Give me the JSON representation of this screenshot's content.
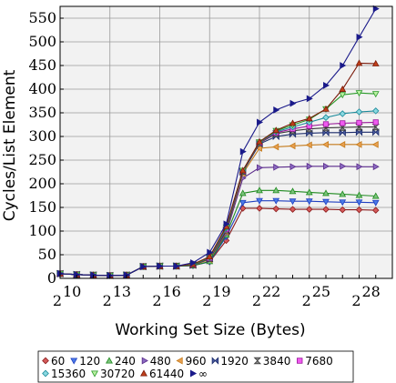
{
  "chart_data": {
    "type": "line",
    "xlabel": "Working Set Size (Bytes)",
    "ylabel": "Cycles/List Element",
    "xscale": "log2",
    "xlim": [
      10,
      30
    ],
    "ylim": [
      0,
      575
    ],
    "grid": true,
    "xticks": [
      {
        "exp": 10,
        "base": "2",
        "power": "10"
      },
      {
        "exp": 13,
        "base": "2",
        "power": "13"
      },
      {
        "exp": 16,
        "base": "2",
        "power": "16"
      },
      {
        "exp": 19,
        "base": "2",
        "power": "19"
      },
      {
        "exp": 22,
        "base": "2",
        "power": "22"
      },
      {
        "exp": 25,
        "base": "2",
        "power": "25"
      },
      {
        "exp": 28,
        "base": "2",
        "power": "28"
      }
    ],
    "yticks": [
      "0",
      "50",
      "100",
      "150",
      "200",
      "250",
      "300",
      "350",
      "400",
      "450",
      "500",
      "550"
    ],
    "legend_position": "bottom",
    "x_exponents": [
      10,
      11,
      12,
      13,
      14,
      15,
      16,
      17,
      18,
      19,
      20,
      21,
      22,
      23,
      24,
      25,
      26,
      27,
      28,
      29
    ],
    "series": [
      {
        "name": "60",
        "marker": "diamond",
        "color": "#8b1a1a",
        "fill": "#d45a5a",
        "values": [
          10,
          8,
          7,
          6,
          7,
          25,
          26,
          26,
          27,
          35,
          80,
          148,
          148,
          147,
          146,
          146,
          146,
          145,
          145,
          144
        ]
      },
      {
        "name": "120",
        "marker": "triangle-down",
        "color": "#2040c0",
        "fill": "#4a7ae8",
        "values": [
          10,
          8,
          7,
          6,
          7,
          25,
          26,
          26,
          27,
          35,
          88,
          160,
          164,
          164,
          163,
          163,
          162,
          161,
          161,
          160
        ]
      },
      {
        "name": "240",
        "marker": "triangle-up",
        "color": "#1f8a1f",
        "fill": "#7cc47c",
        "values": [
          10,
          8,
          7,
          6,
          7,
          25,
          26,
          26,
          27,
          36,
          92,
          180,
          186,
          186,
          184,
          182,
          180,
          178,
          176,
          174
        ]
      },
      {
        "name": "480",
        "marker": "triangle-right",
        "color": "#5a2a8a",
        "fill": "#8a6ac0",
        "values": [
          10,
          8,
          7,
          6,
          7,
          25,
          26,
          26,
          28,
          40,
          95,
          212,
          234,
          235,
          236,
          237,
          237,
          237,
          236,
          236
        ]
      },
      {
        "name": "960",
        "marker": "triangle-left",
        "color": "#c47a1a",
        "fill": "#e8a050",
        "values": [
          10,
          8,
          7,
          6,
          7,
          25,
          26,
          26,
          28,
          40,
          98,
          222,
          275,
          278,
          280,
          282,
          283,
          283,
          283,
          283
        ]
      },
      {
        "name": "1920",
        "marker": "bowtie",
        "color": "#1a2a6a",
        "fill": "#4a5aa0",
        "values": [
          10,
          8,
          7,
          6,
          7,
          25,
          26,
          26,
          28,
          42,
          100,
          225,
          284,
          300,
          305,
          307,
          308,
          308,
          309,
          309
        ]
      },
      {
        "name": "3840",
        "marker": "hourglass",
        "color": "#3a3a3a",
        "fill": "#888888",
        "values": [
          10,
          8,
          7,
          6,
          7,
          25,
          26,
          26,
          29,
          42,
          102,
          226,
          286,
          306,
          312,
          316,
          318,
          319,
          320,
          320
        ]
      },
      {
        "name": "7680",
        "marker": "square",
        "color": "#9a1a9a",
        "fill": "#f05af0",
        "values": [
          10,
          8,
          7,
          6,
          7,
          25,
          26,
          26,
          29,
          43,
          104,
          227,
          287,
          308,
          316,
          322,
          326,
          328,
          329,
          330
        ]
      },
      {
        "name": "15360",
        "marker": "diamond",
        "color": "#1a8a9a",
        "fill": "#8ad8e0",
        "values": [
          10,
          8,
          7,
          6,
          7,
          25,
          26,
          26,
          29,
          44,
          106,
          227,
          288,
          310,
          320,
          330,
          340,
          348,
          352,
          354
        ]
      },
      {
        "name": "30720",
        "marker": "triangle-down",
        "color": "#2a9a2a",
        "fill": "#b8f0a0",
        "values": [
          10,
          8,
          7,
          6,
          7,
          25,
          26,
          26,
          29,
          45,
          108,
          228,
          288,
          312,
          324,
          336,
          358,
          388,
          392,
          390
        ]
      },
      {
        "name": "61440",
        "marker": "triangle-up",
        "color": "#7a1a0a",
        "fill": "#c0401a",
        "values": [
          10,
          8,
          7,
          6,
          7,
          25,
          26,
          26,
          30,
          46,
          110,
          228,
          289,
          313,
          328,
          338,
          358,
          400,
          455,
          454
        ]
      },
      {
        "name": "∞",
        "marker": "triangle-right",
        "color": "#1a1a8a",
        "fill": "#1a1a8a",
        "values": [
          10,
          8,
          7,
          6,
          7,
          25,
          26,
          26,
          33,
          55,
          115,
          268,
          330,
          356,
          370,
          380,
          408,
          450,
          510,
          570
        ]
      }
    ]
  }
}
